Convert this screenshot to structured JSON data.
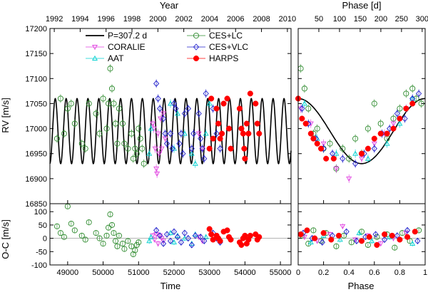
{
  "chart_data": [
    {
      "panel": "rv_vs_time",
      "type": "scatter",
      "title_top": "Year",
      "xlabel": "",
      "ylabel": "RV [m/s]",
      "xlim": [
        48500,
        55300
      ],
      "ylim": [
        16850,
        17200
      ],
      "xticks": [
        49000,
        50000,
        51000,
        52000,
        53000,
        54000,
        55000
      ],
      "yticks": [
        16850,
        16900,
        16950,
        17000,
        17050,
        17100,
        17150,
        17200
      ],
      "top_axis": {
        "ticks": [
          1992,
          1994,
          1996,
          1998,
          2000,
          2002,
          2004,
          2006,
          2008,
          2010
        ],
        "jd_at_1992": 48622.5,
        "days_per_year": 365.25
      },
      "model": {
        "name": "P=307.2 d",
        "period": 307.2,
        "mean": 16995,
        "amplitude": 65,
        "t0": 48650
      },
      "series": [
        {
          "name": "CES+LC",
          "x": [
            48700,
            48800,
            48900,
            49000,
            49100,
            49200,
            49400,
            49500,
            49600,
            49800,
            49900,
            50000,
            50100,
            50150,
            50200,
            50250,
            50300,
            50350,
            50400,
            50450,
            50550,
            50600,
            50700,
            50800,
            50850,
            50900,
            50950,
            51000,
            51050,
            51100,
            51150
          ],
          "y": [
            16980,
            17060,
            16990,
            17040,
            17050,
            17010,
            16970,
            16960,
            17050,
            17030,
            16990,
            17060,
            17000,
            17050,
            17120,
            17080,
            17050,
            17010,
            16970,
            17040,
            17010,
            16970,
            16960,
            16990,
            16940,
            16960,
            16950,
            17000,
            16980,
            16960,
            16930
          ]
        },
        {
          "name": "CORALIE",
          "x": [
            51400,
            51430,
            51470,
            51500,
            51520,
            51550,
            51580,
            51620,
            51650,
            51700,
            51750,
            52700,
            52800
          ],
          "y": [
            17010,
            17000,
            16960,
            16920,
            16910,
            16990,
            16950,
            17020,
            16960,
            17030,
            16980,
            16990,
            16960
          ]
        },
        {
          "name": "AAT",
          "x": [
            51300,
            51350,
            51900,
            52000,
            52100,
            52300,
            52500,
            52600,
            52900,
            53000
          ],
          "y": [
            16950,
            17000,
            17050,
            16960,
            17030,
            16990,
            16950,
            16930,
            16990,
            17050
          ]
        },
        {
          "name": "CES+VLC",
          "x": [
            51500,
            51550,
            51600,
            51700,
            51750,
            51800,
            51900,
            51950,
            52000,
            52050,
            52150,
            52200,
            52250,
            52300,
            52400,
            52500,
            52550,
            52700,
            52750,
            52800,
            52850,
            52900,
            53100,
            53200,
            53300
          ],
          "y": [
            17090,
            17060,
            17040,
            17020,
            16990,
            16970,
            16990,
            16960,
            17050,
            17040,
            16970,
            16990,
            16950,
            17030,
            17040,
            16960,
            16990,
            17030,
            16980,
            16960,
            16940,
            17070,
            17040,
            16990,
            16960
          ]
        },
        {
          "name": "HARPS",
          "x": [
            53000,
            53050,
            53100,
            53200,
            53250,
            53300,
            53350,
            53400,
            53500,
            53550,
            53600,
            53850,
            53900,
            53950,
            53980,
            54000,
            54050,
            54100,
            54150,
            54300,
            54350,
            54400
          ],
          "y": [
            16960,
            17060,
            16980,
            17040,
            17010,
            16980,
            16990,
            17050,
            17060,
            17000,
            16960,
            17040,
            17000,
            16990,
            16960,
            16940,
            17010,
            16990,
            17070,
            17050,
            17010,
            16990
          ]
        }
      ]
    },
    {
      "panel": "oc_vs_time",
      "type": "scatter",
      "xlabel": "Time",
      "ylabel": "O-C [m/s]",
      "xlim": [
        48500,
        55300
      ],
      "ylim": [
        -100,
        130
      ],
      "yticks": [
        -100,
        -50,
        0,
        50,
        100
      ],
      "series": [
        {
          "name": "CES+LC",
          "x": [
            48700,
            48800,
            48900,
            49000,
            49100,
            49200,
            49400,
            49500,
            49600,
            49800,
            49900,
            50000,
            50100,
            50150,
            50200,
            50250,
            50300,
            50350,
            50400,
            50450,
            50550,
            50600,
            50700,
            50800,
            50850,
            50900,
            50950,
            51000
          ],
          "y": [
            45,
            20,
            5,
            120,
            55,
            30,
            10,
            -5,
            60,
            20,
            0,
            -20,
            10,
            40,
            90,
            50,
            20,
            -10,
            -30,
            10,
            -20,
            -40,
            -10,
            -30,
            -60,
            -45,
            -25,
            -15
          ]
        },
        {
          "name": "CORALIE",
          "x": [
            51400,
            51450,
            51500,
            51550,
            51600,
            51650,
            51700,
            52700,
            52800
          ],
          "y": [
            10,
            -5,
            15,
            -20,
            10,
            0,
            -10,
            5,
            -10
          ]
        },
        {
          "name": "AAT",
          "x": [
            51300,
            51350,
            51900,
            52000,
            52100,
            52300,
            52500,
            52600,
            52900
          ],
          "y": [
            -10,
            5,
            20,
            -15,
            10,
            0,
            -20,
            15,
            5
          ]
        },
        {
          "name": "CES+VLC",
          "x": [
            51500,
            51600,
            51700,
            51800,
            51900,
            52000,
            52100,
            52200,
            52300,
            52400,
            52500,
            52600,
            52750,
            52850,
            53100,
            53200,
            53300
          ],
          "y": [
            30,
            10,
            -20,
            15,
            -10,
            25,
            5,
            -15,
            20,
            0,
            -25,
            10,
            5,
            -10,
            20,
            0,
            -15
          ]
        },
        {
          "name": "HARPS",
          "x": [
            53000,
            53050,
            53100,
            53200,
            53250,
            53300,
            53400,
            53500,
            53550,
            53600,
            53850,
            53900,
            53950,
            54000,
            54050,
            54100,
            54150,
            54300,
            54350,
            54400
          ],
          "y": [
            35,
            15,
            -5,
            10,
            0,
            -10,
            25,
            30,
            5,
            -5,
            -15,
            -25,
            0,
            10,
            -20,
            -5,
            10,
            15,
            -5,
            5
          ]
        }
      ]
    },
    {
      "panel": "rv_vs_phase",
      "type": "scatter",
      "title_top": "Phase [d]",
      "xlabel": "",
      "ylabel": "",
      "xlim": [
        0,
        1
      ],
      "ylim": [
        16850,
        17200
      ],
      "top_axis": {
        "ticks": [
          50,
          100,
          150,
          200,
          250,
          300
        ],
        "period": 307.2
      },
      "series": [
        {
          "name": "CES+LC",
          "x": [
            0.02,
            0.05,
            0.08,
            0.12,
            0.15,
            0.2,
            0.25,
            0.3,
            0.35,
            0.4,
            0.45,
            0.5,
            0.55,
            0.6,
            0.65,
            0.7,
            0.75,
            0.8,
            0.85,
            0.9,
            0.93,
            0.97
          ],
          "y": [
            17120,
            17080,
            17040,
            16990,
            17000,
            16960,
            16970,
            16920,
            16960,
            16940,
            16980,
            16950,
            17000,
            17050,
            17010,
            16980,
            17020,
            17040,
            17070,
            17080,
            17060,
            17050
          ]
        },
        {
          "name": "CORALIE",
          "x": [
            0.02,
            0.1,
            0.2,
            0.3,
            0.4,
            0.5,
            0.6,
            0.68,
            0.75,
            0.85
          ],
          "y": [
            17040,
            17010,
            16970,
            16920,
            16900,
            16940,
            16970,
            16990,
            17010,
            17040
          ]
        },
        {
          "name": "AAT",
          "x": [
            0.05,
            0.15,
            0.3,
            0.45,
            0.55,
            0.7,
            0.8,
            0.9
          ],
          "y": [
            17050,
            16980,
            16950,
            16950,
            16940,
            16970,
            17010,
            17060
          ]
        },
        {
          "name": "CES+VLC",
          "x": [
            0.03,
            0.08,
            0.14,
            0.2,
            0.27,
            0.35,
            0.45,
            0.52,
            0.6,
            0.66,
            0.72,
            0.78,
            0.84,
            0.9,
            0.95
          ],
          "y": [
            17040,
            17010,
            16980,
            16960,
            16950,
            16940,
            16930,
            16950,
            16960,
            16990,
            17000,
            17030,
            17020,
            17060,
            17070
          ]
        },
        {
          "name": "HARPS",
          "x": [
            0.0,
            0.03,
            0.06,
            0.1,
            0.12,
            0.15,
            0.18,
            0.22,
            0.28,
            0.5,
            0.55,
            0.6,
            0.65,
            0.7,
            0.75,
            0.8,
            0.85,
            0.9
          ],
          "y": [
            17060,
            17020,
            17010,
            16990,
            16980,
            16970,
            16960,
            16940,
            16940,
            16950,
            16960,
            16980,
            16990,
            16990,
            17000,
            17020,
            17040,
            17050
          ]
        }
      ]
    },
    {
      "panel": "oc_vs_phase",
      "type": "scatter",
      "xlabel": "Phase",
      "xlim": [
        0,
        1
      ],
      "ylim": [
        -100,
        130
      ],
      "xticks": [
        0,
        0.2,
        0.4,
        0.6,
        0.8,
        1
      ],
      "xtick_labels": [
        "0",
        "0.2",
        "0.4",
        "0.6",
        "0.8",
        "1"
      ],
      "series": [
        {
          "name": "CES+LC",
          "x": [
            0.03,
            0.08,
            0.12,
            0.18,
            0.22,
            0.3,
            0.36,
            0.42,
            0.5,
            0.55,
            0.62,
            0.7,
            0.76,
            0.82,
            0.88,
            0.95
          ],
          "y": [
            10,
            -20,
            30,
            -10,
            20,
            -30,
            10,
            -15,
            25,
            -25,
            5,
            15,
            -35,
            20,
            -10,
            30
          ]
        },
        {
          "name": "CORALIE",
          "x": [
            0.05,
            0.15,
            0.25,
            0.35,
            0.45,
            0.55,
            0.65,
            0.75,
            0.85
          ],
          "y": [
            5,
            -10,
            15,
            45,
            -5,
            10,
            -20,
            0,
            20
          ]
        },
        {
          "name": "AAT",
          "x": [
            0.1,
            0.2,
            0.33,
            0.48,
            0.58,
            0.72,
            0.9
          ],
          "y": [
            -15,
            10,
            -5,
            20,
            -10,
            5,
            -20
          ]
        },
        {
          "name": "CES+VLC",
          "x": [
            0.04,
            0.11,
            0.19,
            0.27,
            0.38,
            0.46,
            0.53,
            0.61,
            0.68,
            0.78,
            0.86,
            0.94
          ],
          "y": [
            20,
            0,
            -15,
            10,
            25,
            -10,
            5,
            15,
            -5,
            10,
            30,
            -10
          ]
        },
        {
          "name": "HARPS",
          "x": [
            0.02,
            0.07,
            0.13,
            0.2,
            0.26,
            0.32,
            0.5,
            0.56,
            0.62,
            0.68,
            0.74,
            0.8,
            0.86,
            0.92
          ],
          "y": [
            15,
            30,
            0,
            20,
            -5,
            10,
            -10,
            5,
            -25,
            15,
            10,
            -5,
            5,
            25
          ]
        }
      ]
    }
  ],
  "legend": [
    {
      "name": "P=307.2 d",
      "kind": "line",
      "color": "#000000"
    },
    {
      "name": "CORALIE",
      "kind": "marker",
      "marker": "triangle-down",
      "color": "#e040e0"
    },
    {
      "name": "AAT",
      "kind": "marker",
      "marker": "triangle-up",
      "color": "#00d0d0"
    },
    {
      "name": "CES+LC",
      "kind": "marker",
      "marker": "circle-open",
      "color": "#2e8b2e"
    },
    {
      "name": "CES+VLC",
      "kind": "marker",
      "marker": "diamond-open",
      "color": "#2020cc"
    },
    {
      "name": "HARPS",
      "kind": "marker",
      "marker": "circle-filled",
      "color": "#ff0000"
    }
  ],
  "colors": {
    "CES+LC": "#2e8b2e",
    "CORALIE": "#e040e0",
    "AAT": "#00d0d0",
    "CES+VLC": "#2020cc",
    "HARPS": "#ff0000",
    "model": "#000000"
  },
  "axis_titles": {
    "year": "Year",
    "phase_days": "Phase [d]",
    "rv": "RV [m/s]",
    "oc": "O-C [m/s]",
    "time": "Time",
    "phase": "Phase"
  }
}
